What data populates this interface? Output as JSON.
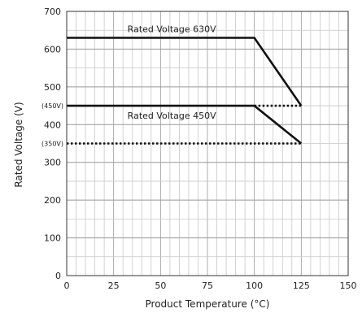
{
  "chart_data": {
    "type": "line",
    "xlabel": "Product Temperature (°C)",
    "ylabel": "Rated Voltage (V)",
    "xlim": [
      0,
      150
    ],
    "ylim": [
      0,
      700
    ],
    "x_ticks": [
      0,
      25,
      50,
      75,
      100,
      125,
      150
    ],
    "y_ticks": [
      0,
      100,
      200,
      300,
      400,
      500,
      600,
      700
    ],
    "extra_y_labels": [
      {
        "value": 450,
        "label": "(450V)"
      },
      {
        "value": 350,
        "label": "(350V)"
      }
    ],
    "grid": {
      "x_step": 5,
      "y_step": 50
    },
    "series": [
      {
        "name": "Rated Voltage 630V",
        "points": [
          [
            0,
            630
          ],
          [
            100,
            630
          ],
          [
            125,
            450
          ]
        ],
        "style": "solid"
      },
      {
        "name": "Rated Voltage 450V",
        "points": [
          [
            0,
            450
          ],
          [
            100,
            450
          ],
          [
            125,
            350
          ]
        ],
        "style": "solid"
      },
      {
        "name": "",
        "points": [
          [
            100,
            450
          ],
          [
            125,
            450
          ]
        ],
        "style": "dotted"
      },
      {
        "name": "",
        "points": [
          [
            0,
            350
          ],
          [
            125,
            350
          ]
        ],
        "style": "dotted"
      }
    ],
    "colors": {
      "line": "#111111",
      "grid_minor": "#c8c8c8",
      "grid_major": "#999999",
      "axis": "#333333"
    }
  }
}
